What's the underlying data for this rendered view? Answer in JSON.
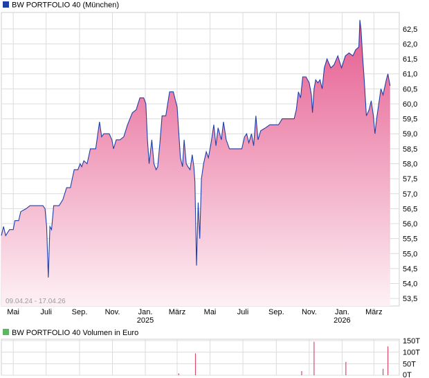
{
  "colors": {
    "price_line": "#1f3fa8",
    "area_top": "#e55a8e",
    "area_bottom": "#fdf1f5",
    "volume_bar": "#d9496c",
    "grid": "#dcdcdc",
    "legend_price_box": "#1f3fa8",
    "legend_volume_box": "#5cb85c"
  },
  "chart_data": [
    {
      "type": "area",
      "title": "BW PORTFOLIO 40 (München)",
      "date_range": "09.04.24 - 17.04.26",
      "x_range": [
        "2024-04-09",
        "2026-04-17"
      ],
      "ylim": [
        53.25,
        63.05
      ],
      "y_ticks": [
        "62,5",
        "62,0",
        "61,5",
        "61,0",
        "60,5",
        "60,0",
        "59,5",
        "59,0",
        "58,5",
        "58,0",
        "57,5",
        "57,0",
        "56,5",
        "56,0",
        "55,5",
        "55,0",
        "54,5",
        "54,0",
        "53,5"
      ],
      "x_ticks": [
        {
          "date": "2024-05-01",
          "label": "Mai",
          "year": ""
        },
        {
          "date": "2024-07-01",
          "label": "Juli",
          "year": ""
        },
        {
          "date": "2024-09-01",
          "label": "Sep.",
          "year": ""
        },
        {
          "date": "2024-11-01",
          "label": "Nov.",
          "year": ""
        },
        {
          "date": "2025-01-01",
          "label": "Jan.",
          "year": "2025"
        },
        {
          "date": "2025-03-01",
          "label": "März",
          "year": ""
        },
        {
          "date": "2025-05-01",
          "label": "Mai",
          "year": ""
        },
        {
          "date": "2025-07-01",
          "label": "Juli",
          "year": ""
        },
        {
          "date": "2025-09-01",
          "label": "Sep.",
          "year": ""
        },
        {
          "date": "2025-11-01",
          "label": "Nov.",
          "year": ""
        },
        {
          "date": "2026-01-01",
          "label": "Jan.",
          "year": "2026"
        },
        {
          "date": "2026-03-01",
          "label": "März",
          "year": ""
        }
      ],
      "grid": true,
      "series": [
        {
          "points": [
            [
              "2024-04-09",
              55.6
            ],
            [
              "2024-04-13",
              55.9
            ],
            [
              "2024-04-17",
              55.6
            ],
            [
              "2024-04-24",
              55.8
            ],
            [
              "2024-05-01",
              55.8
            ],
            [
              "2024-05-04",
              56.1
            ],
            [
              "2024-05-11",
              56.1
            ],
            [
              "2024-05-15",
              56.4
            ],
            [
              "2024-05-25",
              56.5
            ],
            [
              "2024-06-01",
              56.6
            ],
            [
              "2024-06-15",
              56.6
            ],
            [
              "2024-06-25",
              56.6
            ],
            [
              "2024-06-29",
              56.5
            ],
            [
              "2024-07-02",
              55.9
            ],
            [
              "2024-07-05",
              54.2
            ],
            [
              "2024-07-08",
              55.9
            ],
            [
              "2024-07-11",
              55.8
            ],
            [
              "2024-07-15",
              56.6
            ],
            [
              "2024-07-25",
              56.6
            ],
            [
              "2024-08-01",
              56.8
            ],
            [
              "2024-08-08",
              57.2
            ],
            [
              "2024-08-15",
              57.2
            ],
            [
              "2024-08-22",
              57.8
            ],
            [
              "2024-08-29",
              57.8
            ],
            [
              "2024-09-02",
              58.0
            ],
            [
              "2024-09-05",
              57.9
            ],
            [
              "2024-09-09",
              58.1
            ],
            [
              "2024-09-15",
              58.0
            ],
            [
              "2024-09-21",
              58.5
            ],
            [
              "2024-10-01",
              58.5
            ],
            [
              "2024-10-08",
              59.4
            ],
            [
              "2024-10-12",
              58.9
            ],
            [
              "2024-10-16",
              59.0
            ],
            [
              "2024-10-26",
              59.0
            ],
            [
              "2024-10-31",
              58.8
            ],
            [
              "2024-11-03",
              58.5
            ],
            [
              "2024-11-08",
              58.8
            ],
            [
              "2024-11-15",
              58.8
            ],
            [
              "2024-11-22",
              58.9
            ],
            [
              "2024-11-29",
              59.3
            ],
            [
              "2024-12-08",
              59.7
            ],
            [
              "2024-12-15",
              59.8
            ],
            [
              "2024-12-22",
              60.2
            ],
            [
              "2024-12-29",
              60.2
            ],
            [
              "2025-01-02",
              60.0
            ],
            [
              "2025-01-05",
              58.8
            ],
            [
              "2025-01-08",
              58.0
            ],
            [
              "2025-01-13",
              58.8
            ],
            [
              "2025-01-17",
              58.0
            ],
            [
              "2025-01-21",
              57.8
            ],
            [
              "2025-01-24",
              57.9
            ],
            [
              "2025-01-28",
              58.7
            ],
            [
              "2025-02-01",
              59.6
            ],
            [
              "2025-02-08",
              59.6
            ],
            [
              "2025-02-15",
              60.4
            ],
            [
              "2025-02-22",
              60.4
            ],
            [
              "2025-02-26",
              60.1
            ],
            [
              "2025-03-01",
              59.9
            ],
            [
              "2025-03-07",
              58.2
            ],
            [
              "2025-03-11",
              57.9
            ],
            [
              "2025-03-14",
              58.8
            ],
            [
              "2025-03-18",
              58.0
            ],
            [
              "2025-03-21",
              57.9
            ],
            [
              "2025-03-25",
              57.8
            ],
            [
              "2025-03-29",
              58.3
            ],
            [
              "2025-04-01",
              57.9
            ],
            [
              "2025-04-03",
              57.4
            ],
            [
              "2025-04-06",
              54.6
            ],
            [
              "2025-04-09",
              56.7
            ],
            [
              "2025-04-12",
              55.5
            ],
            [
              "2025-04-15",
              57.5
            ],
            [
              "2025-04-19",
              58.0
            ],
            [
              "2025-04-24",
              58.4
            ],
            [
              "2025-04-28",
              58.2
            ],
            [
              "2025-05-03",
              58.7
            ],
            [
              "2025-05-08",
              59.3
            ],
            [
              "2025-05-12",
              58.6
            ],
            [
              "2025-05-16",
              59.2
            ],
            [
              "2025-05-22",
              58.8
            ],
            [
              "2025-05-26",
              59.4
            ],
            [
              "2025-05-31",
              58.8
            ],
            [
              "2025-06-06",
              58.5
            ],
            [
              "2025-06-15",
              58.5
            ],
            [
              "2025-06-22",
              58.5
            ],
            [
              "2025-06-29",
              58.5
            ],
            [
              "2025-07-04",
              58.9
            ],
            [
              "2025-07-08",
              59.0
            ],
            [
              "2025-07-12",
              58.7
            ],
            [
              "2025-07-17",
              59.0
            ],
            [
              "2025-07-21",
              58.6
            ],
            [
              "2025-07-25",
              59.6
            ],
            [
              "2025-07-29",
              58.8
            ],
            [
              "2025-08-03",
              59.1
            ],
            [
              "2025-08-12",
              59.2
            ],
            [
              "2025-08-20",
              59.3
            ],
            [
              "2025-08-28",
              59.3
            ],
            [
              "2025-09-05",
              59.3
            ],
            [
              "2025-09-12",
              59.5
            ],
            [
              "2025-09-20",
              59.5
            ],
            [
              "2025-09-28",
              59.5
            ],
            [
              "2025-10-04",
              59.5
            ],
            [
              "2025-10-08",
              59.8
            ],
            [
              "2025-10-12",
              60.4
            ],
            [
              "2025-10-16",
              60.2
            ],
            [
              "2025-10-20",
              60.9
            ],
            [
              "2025-10-26",
              60.9
            ],
            [
              "2025-11-01",
              60.7
            ],
            [
              "2025-11-05",
              60.3
            ],
            [
              "2025-11-07",
              59.7
            ],
            [
              "2025-11-10",
              60.5
            ],
            [
              "2025-11-13",
              60.8
            ],
            [
              "2025-11-17",
              60.7
            ],
            [
              "2025-11-21",
              60.8
            ],
            [
              "2025-11-25",
              60.5
            ],
            [
              "2025-11-29",
              61.2
            ],
            [
              "2025-12-04",
              61.5
            ],
            [
              "2025-12-11",
              61.2
            ],
            [
              "2025-12-17",
              61.3
            ],
            [
              "2025-12-24",
              61.6
            ],
            [
              "2025-12-31",
              61.2
            ],
            [
              "2026-01-07",
              61.6
            ],
            [
              "2026-01-14",
              61.7
            ],
            [
              "2026-01-21",
              61.6
            ],
            [
              "2026-01-26",
              61.8
            ],
            [
              "2026-02-01",
              61.9
            ],
            [
              "2026-02-03",
              62.8
            ],
            [
              "2026-02-05",
              62.5
            ],
            [
              "2026-02-08",
              61.6
            ],
            [
              "2026-02-11",
              60.8
            ],
            [
              "2026-02-15",
              59.6
            ],
            [
              "2026-02-20",
              59.8
            ],
            [
              "2026-02-24",
              60.1
            ],
            [
              "2026-02-28",
              59.6
            ],
            [
              "2026-03-03",
              59.0
            ],
            [
              "2026-03-06",
              59.5
            ],
            [
              "2026-03-10",
              60.0
            ],
            [
              "2026-03-14",
              60.5
            ],
            [
              "2026-03-18",
              60.3
            ],
            [
              "2026-03-24",
              60.8
            ],
            [
              "2026-03-27",
              61.0
            ],
            [
              "2026-03-31",
              60.6
            ]
          ]
        }
      ]
    },
    {
      "type": "bar",
      "title": "BW PORTFOLIO 40 Volumen in Euro",
      "ylim": [
        0,
        150
      ],
      "y_ticks": [
        "150T",
        "100T",
        "50T",
        "0T"
      ],
      "bars": [
        [
          "2025-03-04",
          8
        ],
        [
          "2025-04-04",
          95
        ],
        [
          "2025-10-18",
          18
        ],
        [
          "2025-11-10",
          145
        ],
        [
          "2026-01-08",
          58
        ],
        [
          "2026-03-18",
          28
        ],
        [
          "2026-03-27",
          125
        ]
      ]
    }
  ]
}
